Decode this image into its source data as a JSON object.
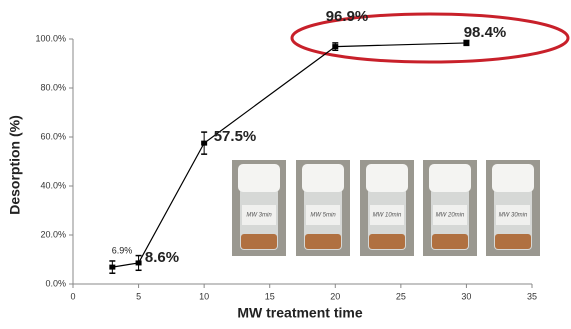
{
  "chart_data": {
    "type": "line",
    "xlabel": "MW treatment time",
    "ylabel": "Desorption (%)",
    "x": [
      3,
      5,
      10,
      20,
      30
    ],
    "series": [
      {
        "color": "#000000",
        "values": [
          6.9,
          8.6,
          57.5,
          96.9,
          98.4
        ],
        "value_labels": [
          "6.9%",
          "8.6%",
          "57.5%",
          "96.9%",
          "98.4%"
        ],
        "errors": [
          2.5,
          3,
          4.5,
          1.5,
          1
        ]
      }
    ],
    "xlim": [
      0,
      35
    ],
    "xticks": [
      0,
      5,
      10,
      15,
      20,
      25,
      30,
      35
    ],
    "ylim": [
      0,
      100
    ],
    "yticks": [
      {
        "value": 0,
        "label": "0.0%"
      },
      {
        "value": 20,
        "label": "20.0%"
      },
      {
        "value": 40,
        "label": "40.0%"
      },
      {
        "value": 60,
        "label": "60.0%"
      },
      {
        "value": 80,
        "label": "80.0%"
      },
      {
        "value": 100,
        "label": "100.0%"
      }
    ],
    "grid": false,
    "photo_labels": [
      "MW 3min",
      "MW 5min",
      "MW 10min",
      "MW 20min",
      "MW 30min"
    ]
  }
}
